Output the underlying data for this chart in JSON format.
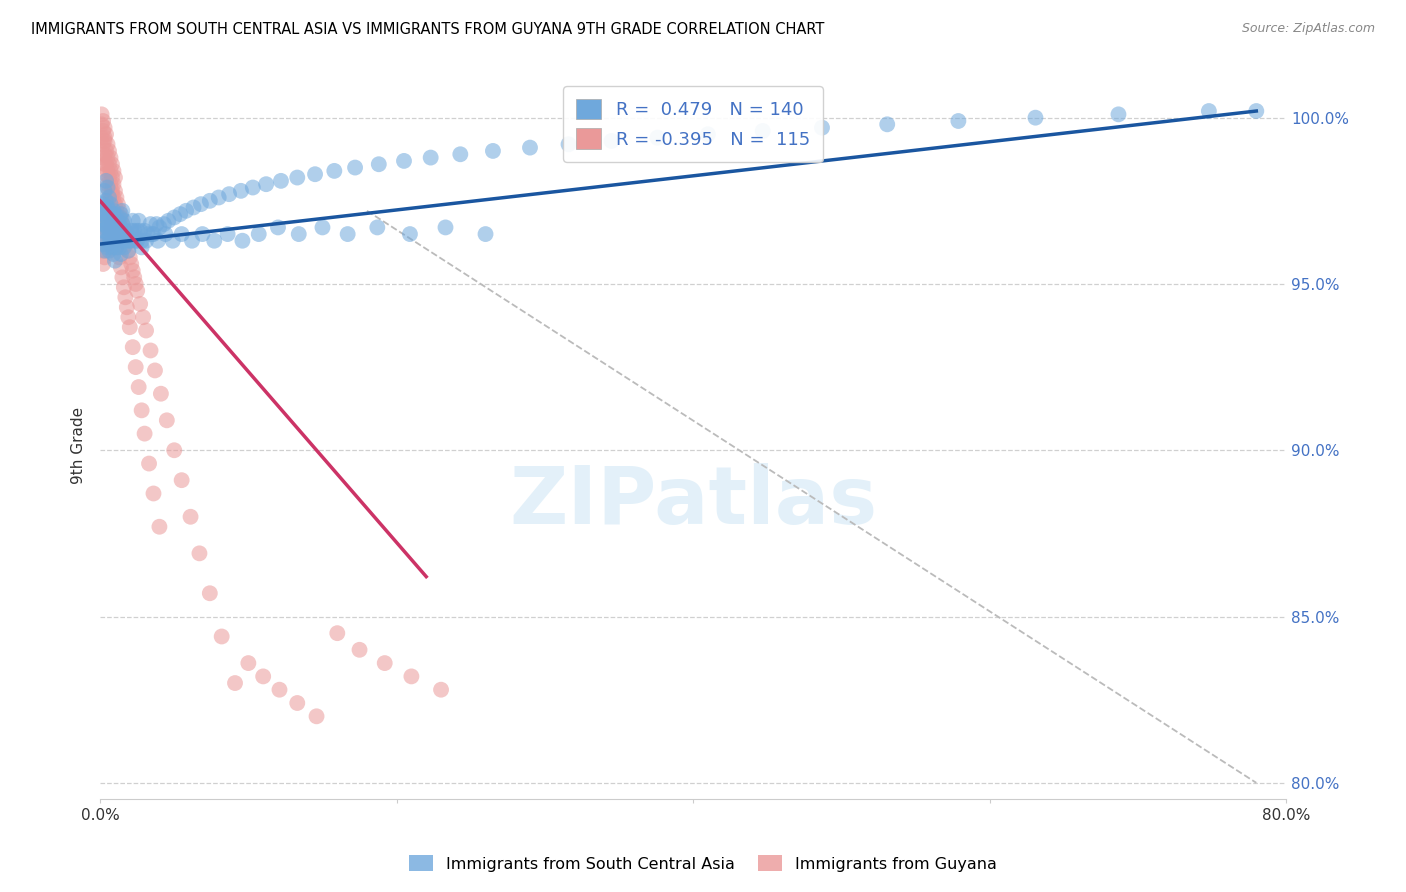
{
  "title": "IMMIGRANTS FROM SOUTH CENTRAL ASIA VS IMMIGRANTS FROM GUYANA 9TH GRADE CORRELATION CHART",
  "source": "Source: ZipAtlas.com",
  "ylabel": "9th Grade",
  "xlim": [
    0.0,
    0.8
  ],
  "ylim": [
    0.795,
    1.008
  ],
  "xticks": [
    0.0,
    0.2,
    0.4,
    0.6,
    0.8
  ],
  "xticklabels": [
    "0.0%",
    "",
    "",
    "",
    "80.0%"
  ],
  "yticks": [
    0.8,
    0.85,
    0.9,
    0.95,
    1.0
  ],
  "blue_R": 0.479,
  "blue_N": 140,
  "pink_R": -0.395,
  "pink_N": 115,
  "blue_color": "#6fa8dc",
  "pink_color": "#ea9999",
  "blue_line_color": "#1a56a0",
  "pink_line_color": "#cc3366",
  "watermark": "ZIPatlas",
  "blue_scatter_x": [
    0.001,
    0.001,
    0.002,
    0.002,
    0.002,
    0.003,
    0.003,
    0.003,
    0.003,
    0.004,
    0.004,
    0.004,
    0.004,
    0.005,
    0.005,
    0.005,
    0.005,
    0.006,
    0.006,
    0.006,
    0.006,
    0.006,
    0.007,
    0.007,
    0.007,
    0.007,
    0.008,
    0.008,
    0.008,
    0.009,
    0.009,
    0.009,
    0.01,
    0.01,
    0.01,
    0.011,
    0.011,
    0.012,
    0.012,
    0.013,
    0.013,
    0.014,
    0.014,
    0.015,
    0.015,
    0.016,
    0.017,
    0.018,
    0.019,
    0.02,
    0.021,
    0.022,
    0.023,
    0.024,
    0.025,
    0.026,
    0.027,
    0.028,
    0.03,
    0.032,
    0.034,
    0.036,
    0.038,
    0.04,
    0.043,
    0.046,
    0.05,
    0.054,
    0.058,
    0.063,
    0.068,
    0.074,
    0.08,
    0.087,
    0.095,
    0.103,
    0.112,
    0.122,
    0.133,
    0.145,
    0.158,
    0.172,
    0.188,
    0.205,
    0.223,
    0.243,
    0.265,
    0.29,
    0.316,
    0.345,
    0.376,
    0.41,
    0.447,
    0.487,
    0.531,
    0.579,
    0.631,
    0.687,
    0.748,
    0.78,
    0.002,
    0.003,
    0.004,
    0.005,
    0.006,
    0.007,
    0.008,
    0.009,
    0.01,
    0.011,
    0.012,
    0.013,
    0.014,
    0.015,
    0.016,
    0.018,
    0.02,
    0.022,
    0.025,
    0.028,
    0.031,
    0.035,
    0.039,
    0.044,
    0.049,
    0.055,
    0.062,
    0.069,
    0.077,
    0.086,
    0.096,
    0.107,
    0.12,
    0.134,
    0.15,
    0.167,
    0.187,
    0.209,
    0.233,
    0.26
  ],
  "blue_scatter_y": [
    0.966,
    0.971,
    0.962,
    0.968,
    0.974,
    0.96,
    0.966,
    0.972,
    0.978,
    0.963,
    0.969,
    0.975,
    0.981,
    0.961,
    0.967,
    0.973,
    0.979,
    0.96,
    0.964,
    0.968,
    0.972,
    0.976,
    0.962,
    0.966,
    0.97,
    0.974,
    0.963,
    0.967,
    0.971,
    0.964,
    0.968,
    0.972,
    0.963,
    0.967,
    0.971,
    0.964,
    0.968,
    0.965,
    0.969,
    0.966,
    0.97,
    0.967,
    0.971,
    0.968,
    0.972,
    0.969,
    0.966,
    0.963,
    0.96,
    0.963,
    0.966,
    0.969,
    0.966,
    0.963,
    0.966,
    0.969,
    0.966,
    0.963,
    0.966,
    0.965,
    0.968,
    0.965,
    0.968,
    0.967,
    0.968,
    0.969,
    0.97,
    0.971,
    0.972,
    0.973,
    0.974,
    0.975,
    0.976,
    0.977,
    0.978,
    0.979,
    0.98,
    0.981,
    0.982,
    0.983,
    0.984,
    0.985,
    0.986,
    0.987,
    0.988,
    0.989,
    0.99,
    0.991,
    0.992,
    0.993,
    0.994,
    0.995,
    0.996,
    0.997,
    0.998,
    0.999,
    1.0,
    1.001,
    1.002,
    1.002,
    0.973,
    0.971,
    0.969,
    0.967,
    0.965,
    0.963,
    0.961,
    0.959,
    0.957,
    0.961,
    0.963,
    0.961,
    0.959,
    0.963,
    0.961,
    0.965,
    0.963,
    0.965,
    0.963,
    0.961,
    0.963,
    0.965,
    0.963,
    0.965,
    0.963,
    0.965,
    0.963,
    0.965,
    0.963,
    0.965,
    0.963,
    0.965,
    0.967,
    0.965,
    0.967,
    0.965,
    0.967,
    0.965,
    0.967,
    0.965
  ],
  "pink_scatter_x": [
    0.001,
    0.001,
    0.001,
    0.002,
    0.002,
    0.002,
    0.002,
    0.003,
    0.003,
    0.003,
    0.003,
    0.003,
    0.004,
    0.004,
    0.004,
    0.004,
    0.005,
    0.005,
    0.005,
    0.005,
    0.006,
    0.006,
    0.006,
    0.006,
    0.007,
    0.007,
    0.007,
    0.007,
    0.008,
    0.008,
    0.008,
    0.009,
    0.009,
    0.009,
    0.01,
    0.01,
    0.01,
    0.011,
    0.011,
    0.012,
    0.012,
    0.013,
    0.013,
    0.014,
    0.014,
    0.015,
    0.016,
    0.017,
    0.018,
    0.019,
    0.02,
    0.021,
    0.022,
    0.023,
    0.024,
    0.025,
    0.027,
    0.029,
    0.031,
    0.034,
    0.037,
    0.041,
    0.045,
    0.05,
    0.055,
    0.061,
    0.067,
    0.074,
    0.082,
    0.091,
    0.1,
    0.11,
    0.121,
    0.133,
    0.146,
    0.16,
    0.175,
    0.192,
    0.21,
    0.23,
    0.001,
    0.002,
    0.002,
    0.003,
    0.003,
    0.004,
    0.004,
    0.005,
    0.005,
    0.006,
    0.006,
    0.007,
    0.007,
    0.008,
    0.008,
    0.009,
    0.009,
    0.01,
    0.011,
    0.012,
    0.013,
    0.014,
    0.015,
    0.016,
    0.017,
    0.018,
    0.019,
    0.02,
    0.022,
    0.024,
    0.026,
    0.028,
    0.03,
    0.033,
    0.036,
    0.04
  ],
  "pink_scatter_y": [
    0.998,
    0.994,
    1.001,
    0.996,
    0.992,
    0.988,
    0.999,
    0.993,
    0.989,
    0.997,
    0.986,
    0.994,
    0.99,
    0.986,
    0.995,
    0.983,
    0.988,
    0.984,
    0.992,
    0.98,
    0.986,
    0.982,
    0.99,
    0.978,
    0.984,
    0.98,
    0.988,
    0.976,
    0.982,
    0.978,
    0.986,
    0.98,
    0.976,
    0.984,
    0.978,
    0.974,
    0.982,
    0.976,
    0.972,
    0.974,
    0.97,
    0.972,
    0.968,
    0.97,
    0.966,
    0.968,
    0.966,
    0.964,
    0.962,
    0.96,
    0.958,
    0.956,
    0.954,
    0.952,
    0.95,
    0.948,
    0.944,
    0.94,
    0.936,
    0.93,
    0.924,
    0.917,
    0.909,
    0.9,
    0.891,
    0.88,
    0.869,
    0.857,
    0.844,
    0.83,
    0.836,
    0.832,
    0.828,
    0.824,
    0.82,
    0.845,
    0.84,
    0.836,
    0.832,
    0.828,
    0.96,
    0.956,
    0.965,
    0.958,
    0.967,
    0.96,
    0.969,
    0.962,
    0.971,
    0.964,
    0.973,
    0.966,
    0.975,
    0.968,
    0.977,
    0.97,
    0.963,
    0.966,
    0.961,
    0.963,
    0.958,
    0.955,
    0.952,
    0.949,
    0.946,
    0.943,
    0.94,
    0.937,
    0.931,
    0.925,
    0.919,
    0.912,
    0.905,
    0.896,
    0.887,
    0.877
  ],
  "blue_line_x": [
    0.0,
    0.78
  ],
  "blue_line_y": [
    0.962,
    1.002
  ],
  "pink_line_x": [
    0.0,
    0.22
  ],
  "pink_line_y": [
    0.975,
    0.862
  ],
  "diag_line_x": [
    0.18,
    0.78
  ],
  "diag_line_y": [
    0.972,
    0.8
  ]
}
